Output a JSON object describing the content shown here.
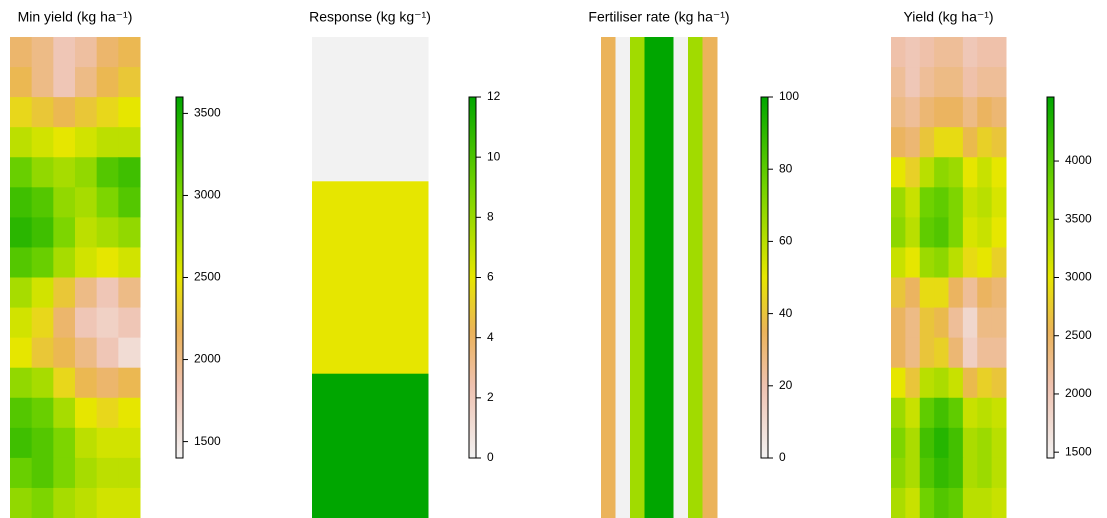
{
  "chart_data": [
    {
      "type": "raster",
      "title": "Min yield (kg ha⁻¹)",
      "zlim": [
        1400,
        3600
      ],
      "zticks": [
        1500,
        2000,
        2500,
        3000,
        3500
      ],
      "colors": [
        {
          "offset": 0,
          "color": "#f2f2f2"
        },
        {
          "offset": 0.2,
          "color": "#efc2b0"
        },
        {
          "offset": 0.35,
          "color": "#ebb35a"
        },
        {
          "offset": 0.5,
          "color": "#e6e600"
        },
        {
          "offset": 0.75,
          "color": "#73d300"
        },
        {
          "offset": 1,
          "color": "#00a600"
        }
      ],
      "values": [
        [
          2100,
          2000,
          1800,
          1900,
          2100,
          2200
        ],
        [
          2200,
          2000,
          1800,
          2000,
          2200,
          2300
        ],
        [
          2400,
          2300,
          2200,
          2300,
          2400,
          2500
        ],
        [
          2700,
          2600,
          2500,
          2600,
          2700,
          2700
        ],
        [
          3100,
          2900,
          2800,
          2900,
          3200,
          3300
        ],
        [
          3300,
          3200,
          2900,
          2800,
          3000,
          3200
        ],
        [
          3400,
          3300,
          3000,
          2700,
          2800,
          2900
        ],
        [
          3200,
          3100,
          2800,
          2600,
          2500,
          2600
        ],
        [
          2800,
          2600,
          2300,
          2000,
          1800,
          2000
        ],
        [
          2600,
          2400,
          2100,
          1800,
          1700,
          1800
        ],
        [
          2500,
          2300,
          2200,
          2000,
          1800,
          1600
        ],
        [
          2900,
          2800,
          2400,
          2200,
          2100,
          2200
        ],
        [
          3200,
          3100,
          2800,
          2500,
          2400,
          2500
        ],
        [
          3300,
          3200,
          3000,
          2700,
          2600,
          2600
        ],
        [
          3100,
          3200,
          3000,
          2800,
          2700,
          2700
        ],
        [
          2900,
          3000,
          2800,
          2700,
          2600,
          2600
        ]
      ]
    },
    {
      "type": "raster",
      "title": "Response (kg kg⁻¹)",
      "zlim": [
        0,
        12
      ],
      "zticks": [
        0,
        2,
        4,
        6,
        8,
        10,
        12
      ],
      "colors": [
        {
          "offset": 0,
          "color": "#f2f2f2"
        },
        {
          "offset": 0.2,
          "color": "#efc2b0"
        },
        {
          "offset": 0.35,
          "color": "#ebb35a"
        },
        {
          "offset": 0.5,
          "color": "#e6e600"
        },
        {
          "offset": 0.75,
          "color": "#73d300"
        },
        {
          "offset": 1,
          "color": "#00a600"
        }
      ],
      "values": [
        [
          0
        ],
        [
          0
        ],
        [
          0
        ],
        [
          6
        ],
        [
          6
        ],
        [
          6
        ],
        [
          6
        ],
        [
          12
        ],
        [
          12
        ],
        [
          12
        ]
      ]
    },
    {
      "type": "raster",
      "title": "Fertiliser rate (kg ha⁻¹)",
      "zlim": [
        0,
        100
      ],
      "zticks": [
        0,
        20,
        40,
        60,
        80,
        100
      ],
      "colors": [
        {
          "offset": 0,
          "color": "#f2f2f2"
        },
        {
          "offset": 0.2,
          "color": "#efc2b0"
        },
        {
          "offset": 0.35,
          "color": "#ebb35a"
        },
        {
          "offset": 0.5,
          "color": "#e6e600"
        },
        {
          "offset": 0.75,
          "color": "#73d300"
        },
        {
          "offset": 1,
          "color": "#00a600"
        }
      ],
      "values": [
        [
          35,
          0,
          65,
          100,
          100,
          0,
          65,
          35
        ]
      ]
    },
    {
      "type": "raster",
      "title": "Yield (kg ha⁻¹)",
      "zlim": [
        1450,
        4550
      ],
      "zticks": [
        1500,
        2000,
        2500,
        3000,
        3500,
        4000
      ],
      "colors": [
        {
          "offset": 0,
          "color": "#f2f2f2"
        },
        {
          "offset": 0.2,
          "color": "#efc2b0"
        },
        {
          "offset": 0.35,
          "color": "#ebb35a"
        },
        {
          "offset": 0.5,
          "color": "#e6e600"
        },
        {
          "offset": 0.75,
          "color": "#73d300"
        },
        {
          "offset": 1,
          "color": "#00a600"
        }
      ],
      "values": [
        [
          2100,
          2000,
          2100,
          2200,
          2200,
          2000,
          2100,
          2100
        ],
        [
          2200,
          2000,
          2200,
          2300,
          2300,
          2100,
          2200,
          2200
        ],
        [
          2300,
          2200,
          2400,
          2500,
          2500,
          2300,
          2500,
          2400
        ],
        [
          2500,
          2400,
          2700,
          2900,
          2900,
          2600,
          2800,
          2700
        ],
        [
          3000,
          2800,
          3300,
          3600,
          3500,
          3000,
          3200,
          3000
        ],
        [
          3500,
          3200,
          3800,
          3900,
          3700,
          3200,
          3300,
          3100
        ],
        [
          3600,
          3300,
          3900,
          4000,
          3700,
          3100,
          3200,
          3000
        ],
        [
          3200,
          3000,
          3500,
          3600,
          3300,
          2900,
          3000,
          2800
        ],
        [
          2700,
          2500,
          2900,
          2900,
          2500,
          2200,
          2500,
          2400
        ],
        [
          2500,
          2300,
          2700,
          2600,
          2200,
          1800,
          2300,
          2300
        ],
        [
          2500,
          2300,
          2700,
          2800,
          2400,
          1900,
          2200,
          2200
        ],
        [
          3000,
          2700,
          3300,
          3400,
          3200,
          2600,
          2800,
          2700
        ],
        [
          3500,
          3200,
          3900,
          4100,
          3900,
          3200,
          3300,
          3200
        ],
        [
          3700,
          3400,
          4100,
          4300,
          4100,
          3400,
          3500,
          3300
        ],
        [
          3600,
          3400,
          4000,
          4200,
          4100,
          3400,
          3500,
          3300
        ],
        [
          3400,
          3200,
          3800,
          4000,
          3900,
          3300,
          3300,
          3200
        ]
      ]
    }
  ]
}
